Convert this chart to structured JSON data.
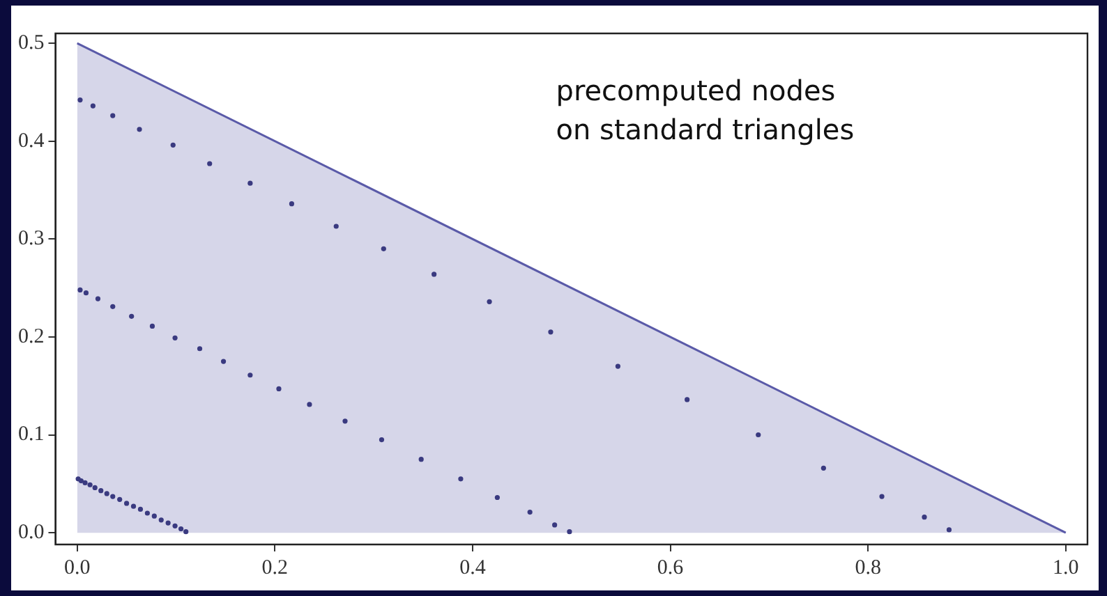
{
  "chart_data": {
    "type": "scatter",
    "annotations": [
      "precomputed nodes\non standard triangles"
    ],
    "series": [
      {
        "type": "area",
        "marker": "none",
        "color": "#5a5aa8",
        "x": [
          0,
          1
        ],
        "values": [
          0.5,
          0
        ]
      },
      {
        "color": "#3a3a80",
        "x": [
          0.003,
          0.016,
          0.036,
          0.063,
          0.097,
          0.134,
          0.175,
          0.217,
          0.262,
          0.31,
          0.361,
          0.417,
          0.479,
          0.547,
          0.617,
          0.689,
          0.755,
          0.814,
          0.857,
          0.882
        ],
        "values": [
          0.442,
          0.436,
          0.426,
          0.412,
          0.396,
          0.377,
          0.357,
          0.336,
          0.313,
          0.29,
          0.264,
          0.236,
          0.205,
          0.17,
          0.136,
          0.1,
          0.066,
          0.037,
          0.016,
          0.003
        ]
      },
      {
        "color": "#3a3a80",
        "x": [
          0.003,
          0.009,
          0.021,
          0.036,
          0.055,
          0.076,
          0.099,
          0.124,
          0.148,
          0.175,
          0.204,
          0.235,
          0.271,
          0.308,
          0.348,
          0.388,
          0.425,
          0.458,
          0.483,
          0.498
        ],
        "values": [
          0.248,
          0.245,
          0.239,
          0.231,
          0.221,
          0.211,
          0.199,
          0.188,
          0.175,
          0.161,
          0.147,
          0.131,
          0.114,
          0.095,
          0.075,
          0.055,
          0.036,
          0.021,
          0.008,
          0.001
        ]
      },
      {
        "color": "#3a3a80",
        "x": [
          0.001,
          0.004,
          0.008,
          0.013,
          0.018,
          0.024,
          0.03,
          0.036,
          0.043,
          0.05,
          0.057,
          0.064,
          0.071,
          0.078,
          0.085,
          0.092,
          0.099,
          0.105,
          0.11
        ],
        "values": [
          0.055,
          0.053,
          0.051,
          0.049,
          0.046,
          0.043,
          0.04,
          0.037,
          0.034,
          0.03,
          0.027,
          0.024,
          0.02,
          0.017,
          0.013,
          0.01,
          0.007,
          0.004,
          0.001
        ]
      }
    ],
    "xlim": [
      -0.022,
      1.022
    ],
    "ylim": [
      -0.012,
      0.51
    ],
    "xticks": [
      {
        "value": 0,
        "label": "0.0"
      },
      0.2,
      0.4,
      0.6,
      0.8,
      {
        "value": 1,
        "label": "1.0"
      }
    ],
    "yticks": [
      {
        "value": 0,
        "label": "0.0"
      },
      0.1,
      0.2,
      0.3,
      0.4,
      0.5
    ],
    "marker": "circle",
    "grid": false,
    "legend": false
  }
}
